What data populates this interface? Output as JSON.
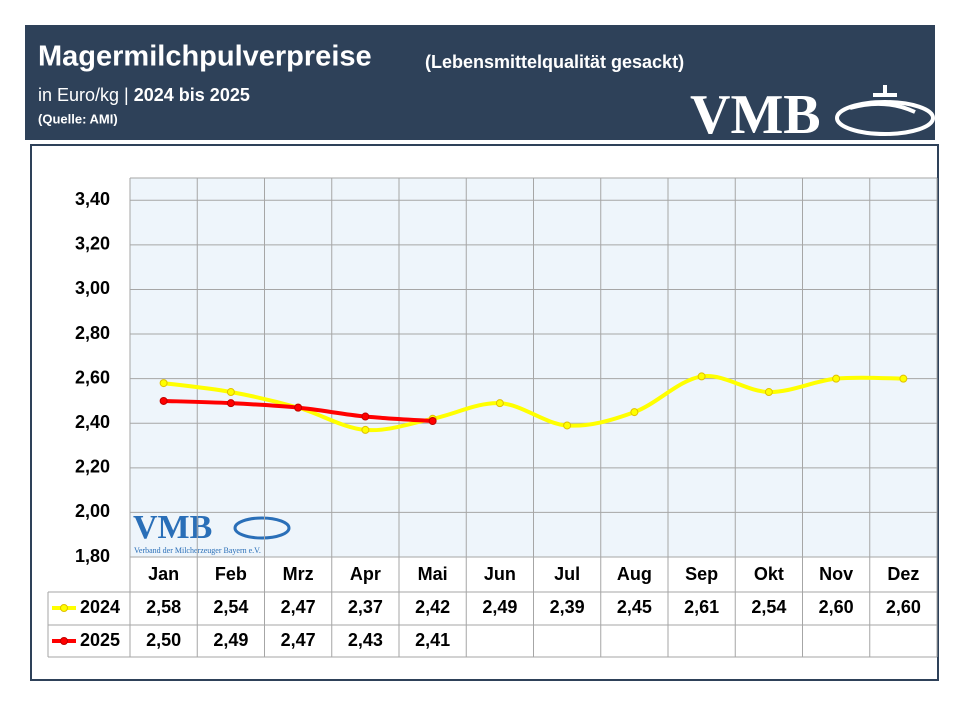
{
  "chart_data": {
    "type": "line",
    "title": "Magermilchpulverpreise",
    "title_note": "(Lebensmittelqualität gesackt)",
    "subtitle_unit": "in Euro/kg |",
    "subtitle_period": "2024 bis 2025",
    "source": "(Quelle: AMI)",
    "logo": "VMB",
    "logo_tagline": "Verband der Milcherzeuger Bayern e.V.",
    "categories": [
      "Jan",
      "Feb",
      "Mrz",
      "Apr",
      "Mai",
      "Jun",
      "Jul",
      "Aug",
      "Sep",
      "Okt",
      "Nov",
      "Dez"
    ],
    "series": [
      {
        "name": "2024",
        "color": "#ffff00",
        "marker_edge": "#e0c000",
        "values": [
          2.58,
          2.54,
          2.47,
          2.37,
          2.42,
          2.49,
          2.39,
          2.45,
          2.61,
          2.54,
          2.6,
          2.6
        ],
        "value_labels": [
          "2,58",
          "2,54",
          "2,47",
          "2,37",
          "2,42",
          "2,49",
          "2,39",
          "2,45",
          "2,61",
          "2,54",
          "2,60",
          "2,60"
        ]
      },
      {
        "name": "2025",
        "color": "#ff0000",
        "marker_edge": "#c00000",
        "values": [
          2.5,
          2.49,
          2.47,
          2.43,
          2.41,
          null,
          null,
          null,
          null,
          null,
          null,
          null
        ],
        "value_labels": [
          "2,50",
          "2,49",
          "2,47",
          "2,43",
          "2,41",
          null,
          null,
          null,
          null,
          null,
          null,
          null
        ]
      }
    ],
    "ylim": [
      1.8,
      3.5
    ],
    "yticks": [
      {
        "value": 1.8,
        "label": "1,80"
      },
      {
        "value": 2.0,
        "label": "2,00"
      },
      {
        "value": 2.2,
        "label": "2,20"
      },
      {
        "value": 2.4,
        "label": "2,40"
      },
      {
        "value": 2.6,
        "label": "2,60"
      },
      {
        "value": 2.8,
        "label": "2,80"
      },
      {
        "value": 3.0,
        "label": "3,00"
      },
      {
        "value": 3.2,
        "label": "3,20"
      },
      {
        "value": 3.4,
        "label": "3,40"
      }
    ],
    "grid": true
  }
}
